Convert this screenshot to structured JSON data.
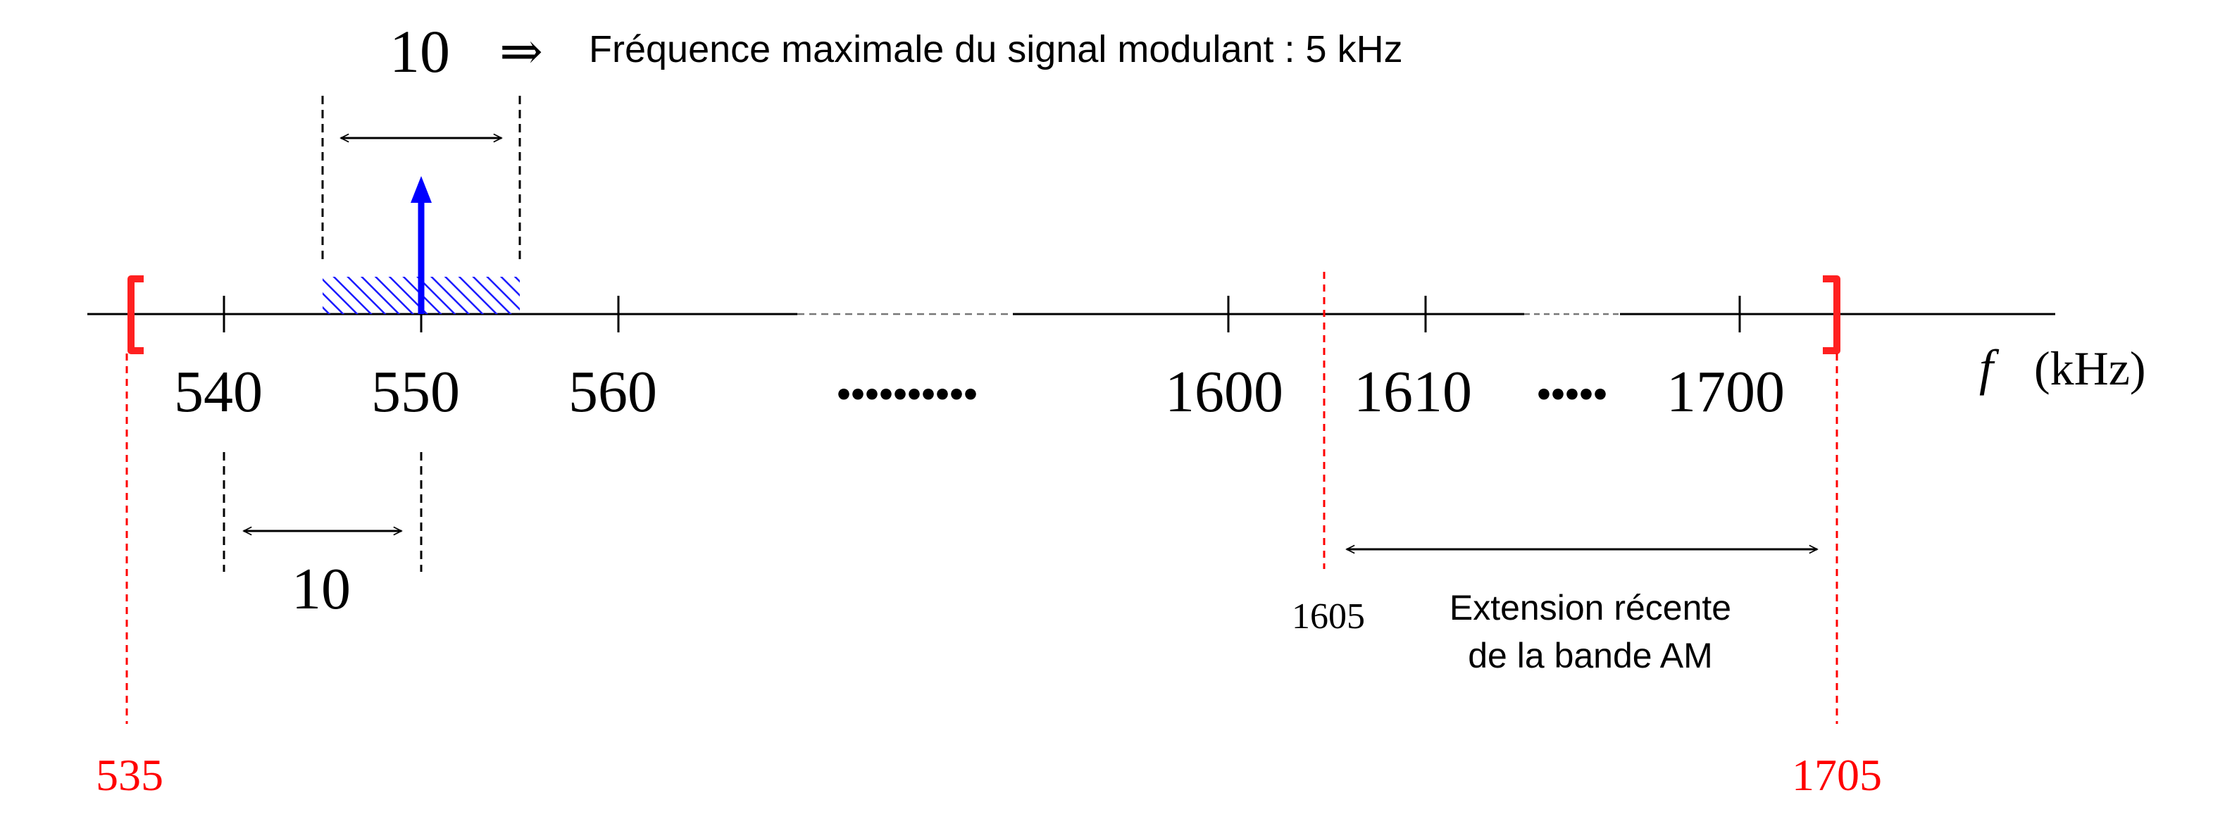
{
  "top_note": {
    "spacing_value": "10",
    "implies_symbol": "⇒",
    "text": "Fréquence maximale du signal modulant :  5 kHz"
  },
  "axis": {
    "tick_labels": [
      "540",
      "550",
      "560",
      "1600",
      "1610",
      "1700"
    ],
    "ellipsis_long": "..........",
    "ellipsis_short": ".....",
    "variable": "f",
    "unit": "(kHz)"
  },
  "lower_spacing_value": "10",
  "band_limits": {
    "low": "535",
    "high": "1705"
  },
  "extension": {
    "start_label": "1605",
    "line1": "Extension récente",
    "line2": "de la bande AM"
  },
  "colors": {
    "axis": "#000000",
    "carrier": "#0000ff",
    "hatch": "#1a1aff",
    "band_limit": "#ff0000",
    "bracket": "#ff2020"
  }
}
